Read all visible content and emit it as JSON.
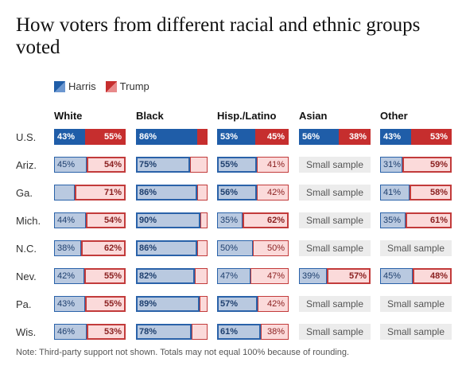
{
  "title": "How voters from different racial and ethnic groups voted",
  "legend": {
    "harris": "Harris",
    "trump": "Trump"
  },
  "colors": {
    "harris": "#1f5da8",
    "trump": "#c62e2e",
    "harris_light": "#b9c9e0",
    "trump_light": "#fbdada",
    "small_sample": "#ececec"
  },
  "note": "Note: Third-party support not shown. Totals may not equal 100% because of rounding.",
  "small_sample_label": "Small sample",
  "chart_data": {
    "type": "bar",
    "groups": [
      "White",
      "Black",
      "Hisp./Latino",
      "Asian",
      "Other"
    ],
    "rows": [
      "U.S.",
      "Ariz.",
      "Ga.",
      "Mich.",
      "N.C.",
      "Nev.",
      "Pa.",
      "Wis."
    ],
    "series": [
      {
        "name": "Harris"
      },
      {
        "name": "Trump"
      }
    ],
    "cells": [
      [
        {
          "h": 43,
          "t": 55,
          "hl": "43%",
          "tl": "55%"
        },
        {
          "h": 86,
          "t": null,
          "hl": "86%",
          "tl": ""
        },
        {
          "h": 53,
          "t": 45,
          "hl": "53%",
          "tl": "45%"
        },
        {
          "h": 56,
          "t": 38,
          "hl": "56%",
          "tl": "38%"
        },
        {
          "h": 43,
          "t": 53,
          "hl": "43%",
          "tl": "53%"
        }
      ],
      [
        {
          "h": 45,
          "t": 54,
          "hl": "45%",
          "tl": "54%"
        },
        {
          "h": 75,
          "t": null,
          "hl": "75%",
          "tl": ""
        },
        {
          "h": 55,
          "t": 41,
          "hl": "55%",
          "tl": "41%"
        },
        null,
        {
          "h": 31,
          "t": 59,
          "hl": "31%",
          "tl": "59%"
        }
      ],
      [
        {
          "h": null,
          "t": 71,
          "hl": "",
          "tl": "71%"
        },
        {
          "h": 86,
          "t": null,
          "hl": "86%",
          "tl": ""
        },
        {
          "h": 56,
          "t": 42,
          "hl": "56%",
          "tl": "42%"
        },
        null,
        {
          "h": 41,
          "t": 58,
          "hl": "41%",
          "tl": "58%"
        }
      ],
      [
        {
          "h": 44,
          "t": 54,
          "hl": "44%",
          "tl": "54%"
        },
        {
          "h": 90,
          "t": null,
          "hl": "90%",
          "tl": ""
        },
        {
          "h": 35,
          "t": 62,
          "hl": "35%",
          "tl": "62%"
        },
        null,
        {
          "h": 35,
          "t": 61,
          "hl": "35%",
          "tl": "61%"
        }
      ],
      [
        {
          "h": 38,
          "t": 62,
          "hl": "38%",
          "tl": "62%"
        },
        {
          "h": 86,
          "t": null,
          "hl": "86%",
          "tl": ""
        },
        {
          "h": 50,
          "t": 50,
          "hl": "50%",
          "tl": "50%"
        },
        null,
        null
      ],
      [
        {
          "h": 42,
          "t": 55,
          "hl": "42%",
          "tl": "55%"
        },
        {
          "h": 82,
          "t": null,
          "hl": "82%",
          "tl": ""
        },
        {
          "h": 47,
          "t": 47,
          "hl": "47%",
          "tl": "47%"
        },
        {
          "h": 39,
          "t": 57,
          "hl": "39%",
          "tl": "57%"
        },
        {
          "h": 45,
          "t": 48,
          "hl": "45%",
          "tl": "48%"
        }
      ],
      [
        {
          "h": 43,
          "t": 55,
          "hl": "43%",
          "tl": "55%"
        },
        {
          "h": 89,
          "t": null,
          "hl": "89%",
          "tl": ""
        },
        {
          "h": 57,
          "t": 42,
          "hl": "57%",
          "tl": "42%"
        },
        null,
        null
      ],
      [
        {
          "h": 46,
          "t": 53,
          "hl": "46%",
          "tl": "53%"
        },
        {
          "h": 78,
          "t": null,
          "hl": "78%",
          "tl": ""
        },
        {
          "h": 61,
          "t": 38,
          "hl": "61%",
          "tl": "38%"
        },
        null,
        null
      ]
    ],
    "xlim": [
      0,
      100
    ]
  }
}
